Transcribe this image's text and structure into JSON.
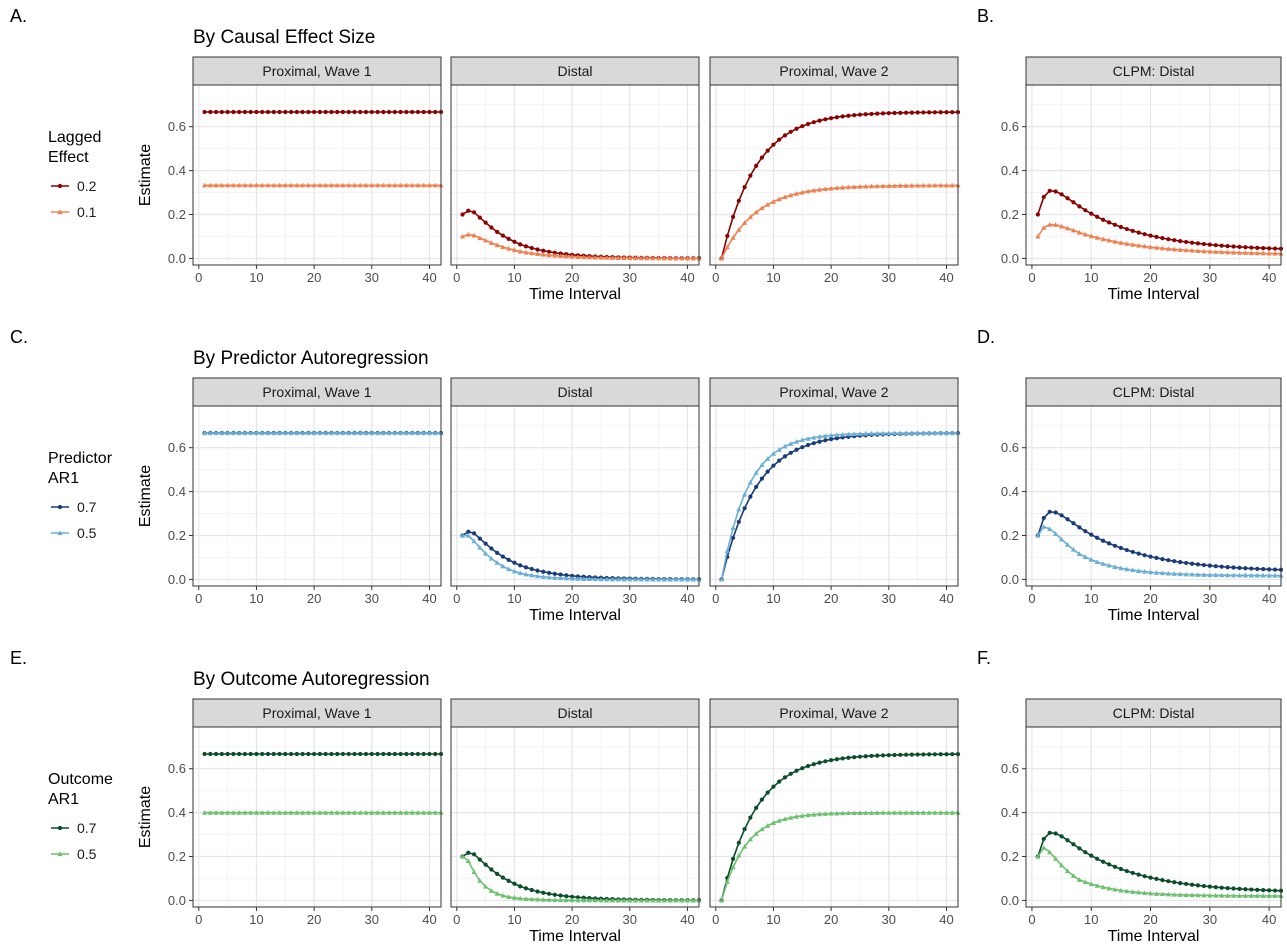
{
  "figure": {
    "ylabel": "Estimate",
    "xlabel": "Time Interval",
    "x_ticks": [
      0,
      10,
      20,
      30,
      40
    ],
    "y_ticks": [
      0.0,
      0.2,
      0.4,
      0.6
    ],
    "y_tick_labels": [
      "0.0",
      "0.2",
      "0.4",
      "0.6"
    ],
    "xlim": [
      -1,
      42
    ],
    "ylim": [
      -0.03,
      0.79
    ],
    "panels": [
      "Proximal, Wave 1",
      "Distal",
      "Proximal, Wave 2",
      "CLPM: Distal"
    ],
    "x_range": [
      1,
      42
    ]
  },
  "rows": [
    {
      "left_letter": "A.",
      "right_letter": "B.",
      "title": "By Causal Effect Size",
      "legend": {
        "title_line1": "Lagged",
        "title_line2": "Effect",
        "items": [
          {
            "label": "0.2",
            "marker": "circle",
            "color": "#8b0000"
          },
          {
            "label": "0.1",
            "marker": "triangle",
            "color": "#f08050"
          }
        ]
      },
      "series": [
        {
          "name": "0.2",
          "color": "#8b0000",
          "marker": "circle",
          "wave1": 0.667,
          "wave2_init": 0.0,
          "wave2_final": 0.667,
          "wave2_tau": 6.0,
          "distal": [
            0.2,
            0.217,
            0.21,
            0.186,
            0.163,
            0.141,
            0.121,
            0.104,
            0.089,
            0.076,
            0.064
          ],
          "distal_decay": 0.86,
          "clpm": [
            0.2,
            0.28,
            0.308,
            0.305,
            0.292,
            0.274,
            0.256,
            0.237
          ],
          "clpm_floor": 0.034,
          "clpm_decay": 0.915
        },
        {
          "name": "0.1",
          "color": "#f08050",
          "marker": "triangle",
          "wave1": 0.333,
          "wave2_init": 0.0,
          "wave2_final": 0.333,
          "wave2_tau": 6.0,
          "distal": [
            0.1,
            0.109,
            0.105,
            0.093,
            0.082,
            0.071,
            0.061,
            0.052,
            0.045,
            0.038,
            0.032
          ],
          "distal_decay": 0.86,
          "clpm": [
            0.1,
            0.14,
            0.154,
            0.153,
            0.146,
            0.137,
            0.128,
            0.118
          ],
          "clpm_floor": 0.017,
          "clpm_decay": 0.915
        }
      ]
    },
    {
      "left_letter": "C.",
      "right_letter": "D.",
      "title": "By Predictor Autoregression",
      "legend": {
        "title_line1": "Predictor",
        "title_line2": "AR1",
        "items": [
          {
            "label": "0.7",
            "marker": "circle",
            "color": "#1a3a78"
          },
          {
            "label": "0.5",
            "marker": "triangle",
            "color": "#6aaed6"
          }
        ]
      },
      "series": [
        {
          "name": "0.7",
          "color": "#1a3a78",
          "marker": "circle",
          "wave1": 0.667,
          "wave2_init": 0.0,
          "wave2_final": 0.667,
          "wave2_tau": 6.0,
          "distal": [
            0.2,
            0.217,
            0.21,
            0.186,
            0.163,
            0.141,
            0.121,
            0.104,
            0.089,
            0.076,
            0.064
          ],
          "distal_decay": 0.86,
          "clpm": [
            0.2,
            0.28,
            0.308,
            0.305,
            0.292,
            0.274,
            0.256,
            0.237
          ],
          "clpm_floor": 0.034,
          "clpm_decay": 0.915
        },
        {
          "name": "0.5",
          "color": "#6aaed6",
          "marker": "triangle",
          "wave1": 0.667,
          "wave2_init": 0.0,
          "wave2_final": 0.667,
          "wave2_tau": 4.6,
          "distal": [
            0.2,
            0.2,
            0.174,
            0.145,
            0.118,
            0.095,
            0.076,
            0.06,
            0.047,
            0.037,
            0.029
          ],
          "distal_decay": 0.8,
          "clpm": [
            0.2,
            0.24,
            0.23,
            0.208,
            0.183,
            0.158,
            0.136,
            0.116
          ],
          "clpm_floor": 0.017,
          "clpm_decay": 0.86
        }
      ]
    },
    {
      "left_letter": "E.",
      "right_letter": "F.",
      "title": "By Outcome Autoregression",
      "legend": {
        "title_line1": "Outcome",
        "title_line2": "AR1",
        "items": [
          {
            "label": "0.7",
            "marker": "circle",
            "color": "#0b4d2a"
          },
          {
            "label": "0.5",
            "marker": "triangle",
            "color": "#6cc070"
          }
        ]
      },
      "series": [
        {
          "name": "0.7",
          "color": "#0b4d2a",
          "marker": "circle",
          "wave1": 0.667,
          "wave2_init": 0.0,
          "wave2_final": 0.667,
          "wave2_tau": 6.0,
          "distal": [
            0.2,
            0.217,
            0.21,
            0.186,
            0.163,
            0.141,
            0.121,
            0.104,
            0.089,
            0.076,
            0.064
          ],
          "distal_decay": 0.86,
          "clpm": [
            0.2,
            0.28,
            0.308,
            0.305,
            0.292,
            0.274,
            0.256,
            0.237
          ],
          "clpm_floor": 0.034,
          "clpm_decay": 0.915
        },
        {
          "name": "0.5",
          "color": "#6cc070",
          "marker": "triangle",
          "wave1": 0.4,
          "wave2_init": 0.0,
          "wave2_final": 0.4,
          "wave2_tau": 4.2,
          "distal": [
            0.2,
            0.18,
            0.13,
            0.09,
            0.063,
            0.044,
            0.031,
            0.022,
            0.016,
            0.012,
            0.009
          ],
          "distal_decay": 0.78,
          "clpm": [
            0.2,
            0.24,
            0.22,
            0.19,
            0.16,
            0.134,
            0.112,
            0.094
          ],
          "clpm_floor": 0.02,
          "clpm_decay": 0.86
        }
      ]
    }
  ],
  "chart_data": [
    {
      "type": "line",
      "title": "By Causal Effect Size",
      "xlabel": "Time Interval",
      "ylabel": "Estimate",
      "facets": [
        "Proximal, Wave 1",
        "Distal",
        "Proximal, Wave 2",
        "CLPM: Distal"
      ],
      "legend_title": "Lagged Effect",
      "series": [
        {
          "name": "0.2",
          "proximal_wave1": 0.667,
          "proximal_wave2_asymptote": 0.667,
          "distal_peak": 0.217,
          "clpm_peak": 0.308
        },
        {
          "name": "0.1",
          "proximal_wave1": 0.333,
          "proximal_wave2_asymptote": 0.333,
          "distal_peak": 0.109,
          "clpm_peak": 0.154
        }
      ],
      "xlim": [
        1,
        42
      ],
      "ylim": [
        0,
        0.7
      ]
    },
    {
      "type": "line",
      "title": "By Predictor Autoregression",
      "xlabel": "Time Interval",
      "ylabel": "Estimate",
      "facets": [
        "Proximal, Wave 1",
        "Distal",
        "Proximal, Wave 2",
        "CLPM: Distal"
      ],
      "legend_title": "Predictor AR1",
      "series": [
        {
          "name": "0.7",
          "proximal_wave1": 0.667,
          "proximal_wave2_asymptote": 0.667,
          "distal_peak": 0.217,
          "clpm_peak": 0.308
        },
        {
          "name": "0.5",
          "proximal_wave1": 0.667,
          "proximal_wave2_asymptote": 0.667,
          "distal_peak": 0.2,
          "clpm_peak": 0.24
        }
      ],
      "xlim": [
        1,
        42
      ],
      "ylim": [
        0,
        0.7
      ]
    },
    {
      "type": "line",
      "title": "By Outcome Autoregression",
      "xlabel": "Time Interval",
      "ylabel": "Estimate",
      "facets": [
        "Proximal, Wave 1",
        "Distal",
        "Proximal, Wave 2",
        "CLPM: Distal"
      ],
      "legend_title": "Outcome AR1",
      "series": [
        {
          "name": "0.7",
          "proximal_wave1": 0.667,
          "proximal_wave2_asymptote": 0.667,
          "distal_peak": 0.217,
          "clpm_peak": 0.308
        },
        {
          "name": "0.5",
          "proximal_wave1": 0.4,
          "proximal_wave2_asymptote": 0.4,
          "distal_peak": 0.2,
          "clpm_peak": 0.24
        }
      ],
      "xlim": [
        1,
        42
      ],
      "ylim": [
        0,
        0.7
      ]
    }
  ]
}
